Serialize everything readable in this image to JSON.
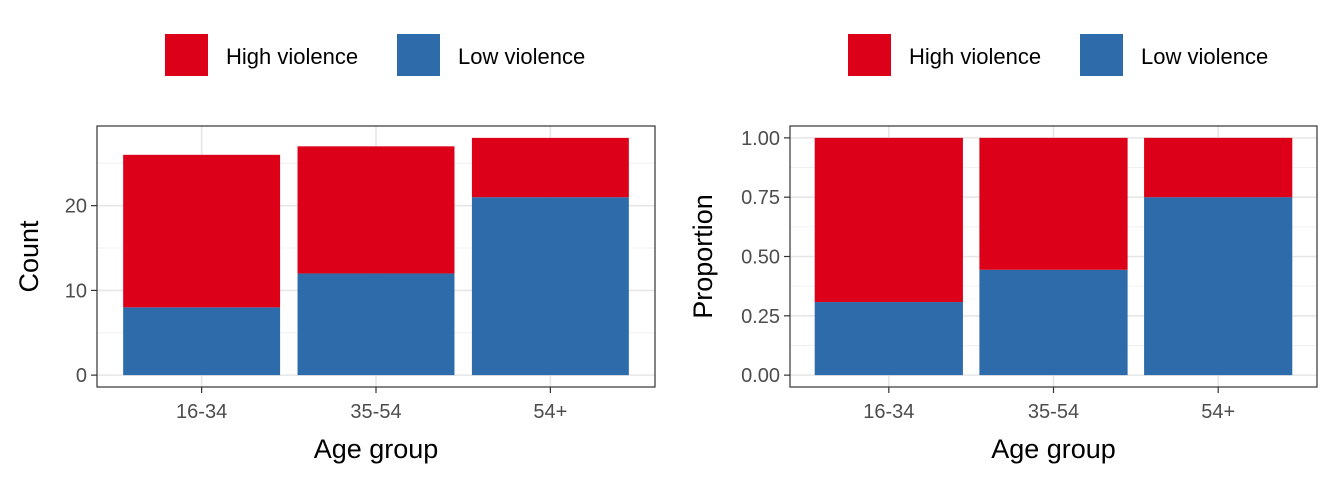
{
  "legend": {
    "entries": [
      {
        "label": "High violence",
        "color": "#DC0018"
      },
      {
        "label": "Low violence",
        "color": "#2E6BAB"
      }
    ]
  },
  "chart_data": [
    {
      "type": "bar",
      "stacked": true,
      "categories": [
        "16-34",
        "35-54",
        "54+"
      ],
      "series": [
        {
          "name": "Low violence",
          "color": "#2E6BAB",
          "values": [
            8,
            12,
            21
          ]
        },
        {
          "name": "High violence",
          "color": "#DC0018",
          "values": [
            18,
            15,
            7
          ]
        }
      ],
      "xlabel": "Age group",
      "ylabel": "Count",
      "ylim": [
        -1.4,
        29.4
      ],
      "yticks": [
        0,
        10,
        20
      ],
      "ytick_labels": [
        "0",
        "10",
        "20"
      ],
      "grid": true,
      "legend_position": "top"
    },
    {
      "type": "bar",
      "stacked": true,
      "categories": [
        "16-34",
        "35-54",
        "54+"
      ],
      "series": [
        {
          "name": "Low violence",
          "color": "#2E6BAB",
          "values": [
            0.308,
            0.444,
            0.75
          ]
        },
        {
          "name": "High violence",
          "color": "#DC0018",
          "values": [
            0.692,
            0.556,
            0.25
          ]
        }
      ],
      "xlabel": "Age group",
      "ylabel": "Proportion",
      "ylim": [
        -0.05,
        1.05
      ],
      "yticks": [
        0,
        0.25,
        0.5,
        0.75,
        1.0
      ],
      "ytick_labels": [
        "0.00",
        "0.25",
        "0.50",
        "0.75",
        "1.00"
      ],
      "grid": true,
      "legend_position": "top"
    }
  ]
}
